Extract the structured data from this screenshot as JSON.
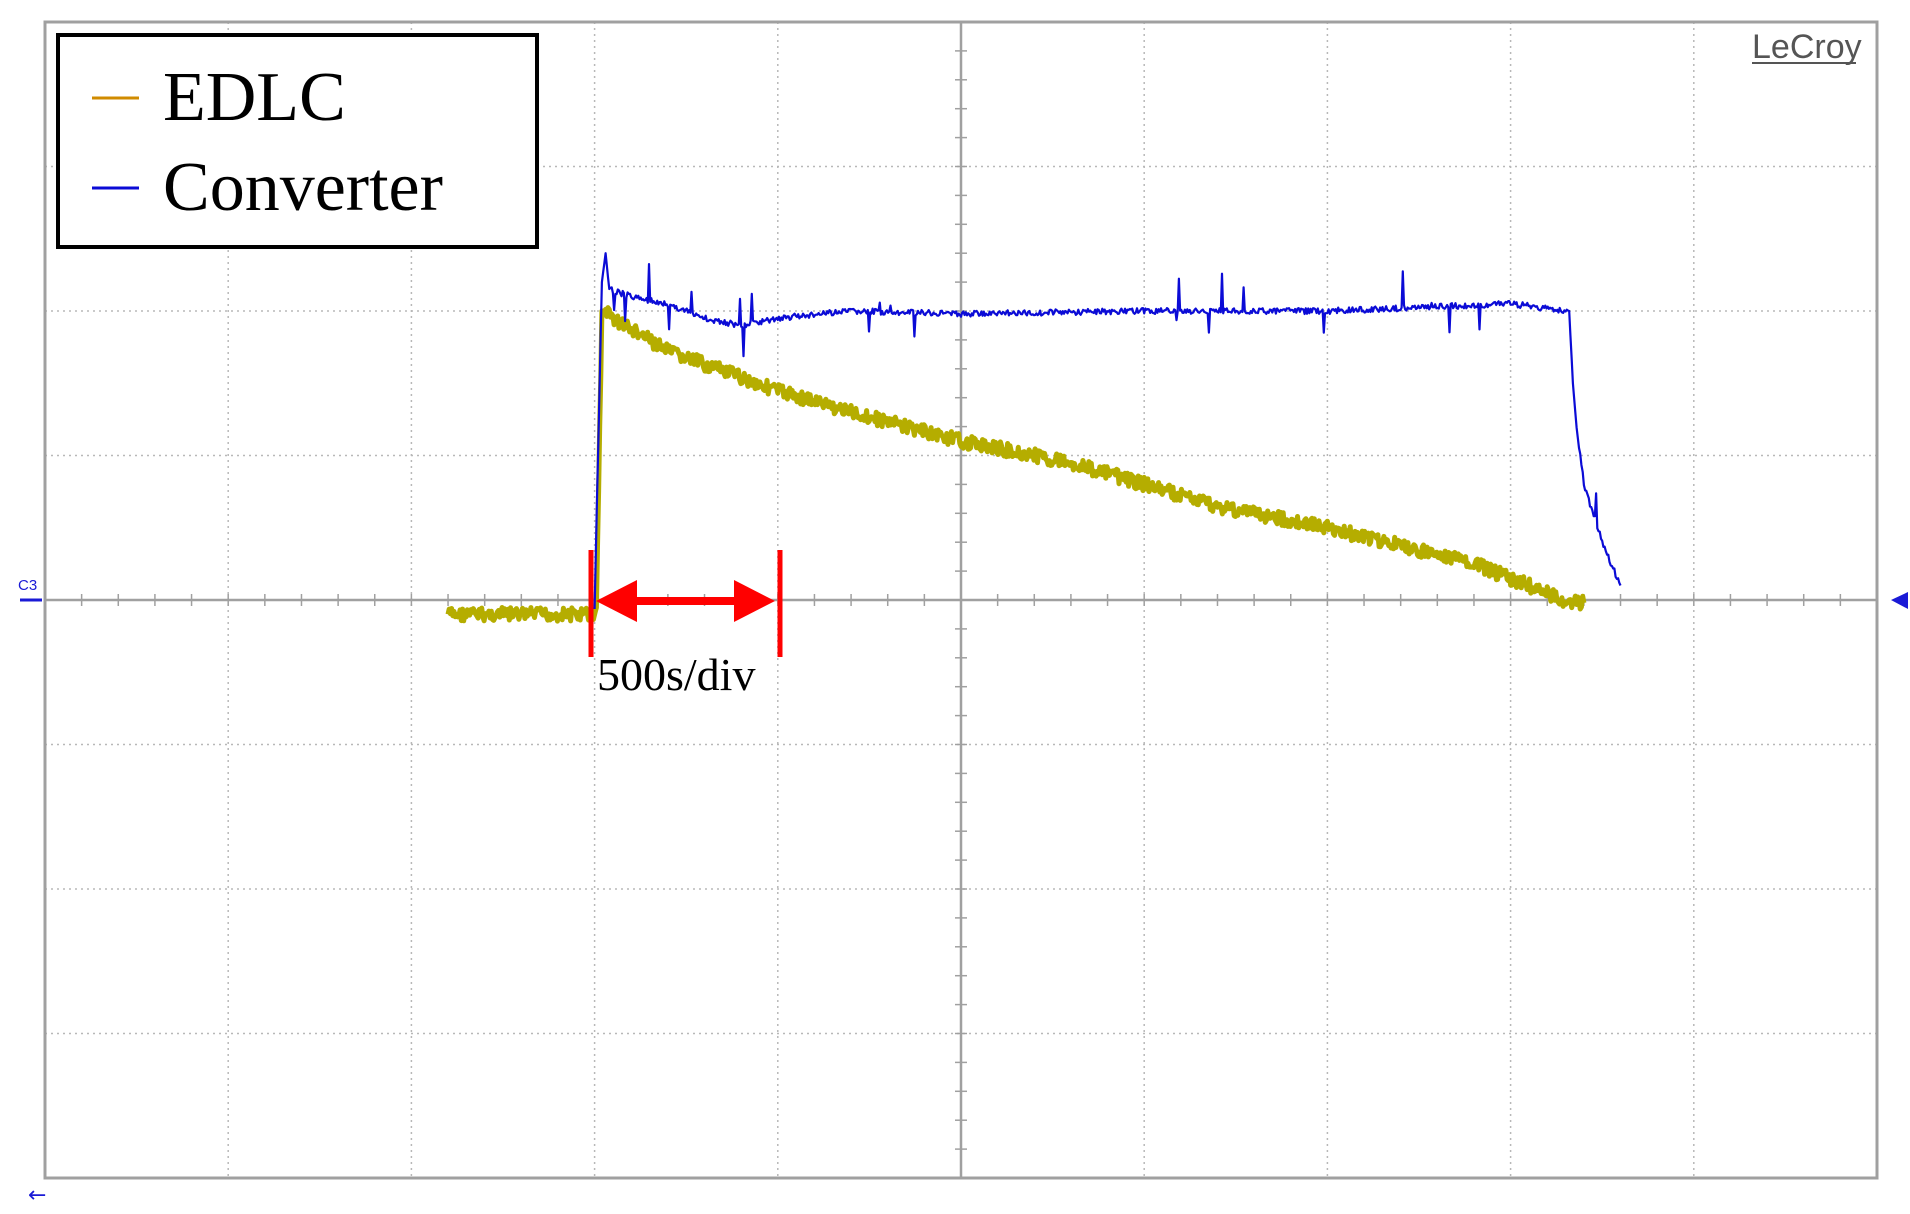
{
  "brand": "LeCroy",
  "channel_marker": "C3",
  "annotation": "500s/div",
  "colors": {
    "edlc": "#b5ad00",
    "edlc_legend": "#d08b00",
    "converter": "#0b0bd6",
    "annotation": "#ff0000",
    "grid": "#b8b8b8",
    "frame": "#a0a0a0"
  },
  "chart_data": {
    "type": "line",
    "title": "",
    "xlabel": "",
    "ylabel": "",
    "x_units": "s",
    "time_per_div": 500,
    "divisions": {
      "x": 10,
      "y": 8
    },
    "xlim": [
      -2500,
      2500
    ],
    "ylim": [
      -4,
      4
    ],
    "grid": true,
    "legend_position": "top-left",
    "series": [
      {
        "name": "EDLC",
        "x": [
          -1400,
          -1000,
          -995,
          -980,
          -970,
          -950,
          -800,
          -500,
          -300,
          0,
          300,
          500,
          700,
          1000,
          1400,
          1500,
          1600,
          1640,
          1700
        ],
        "y": [
          -0.1,
          -0.1,
          -0.05,
          2.0,
          2.0,
          1.95,
          1.72,
          1.45,
          1.3,
          1.1,
          0.95,
          0.8,
          0.65,
          0.5,
          0.25,
          0.15,
          0.05,
          0.0,
          -0.02
        ]
      },
      {
        "name": "Converter",
        "x": [
          -1000,
          -980,
          -970,
          -960,
          -900,
          -800,
          -700,
          -600,
          -500,
          -300,
          0,
          500,
          1000,
          1500,
          1660,
          1670,
          1680,
          1700,
          1750,
          1800
        ],
        "y": [
          -0.05,
          2.2,
          2.4,
          2.15,
          2.1,
          2.05,
          1.95,
          1.9,
          1.95,
          2.0,
          1.98,
          2.0,
          2.0,
          2.05,
          2.0,
          1.5,
          1.2,
          0.8,
          0.4,
          0.1
        ]
      }
    ]
  }
}
